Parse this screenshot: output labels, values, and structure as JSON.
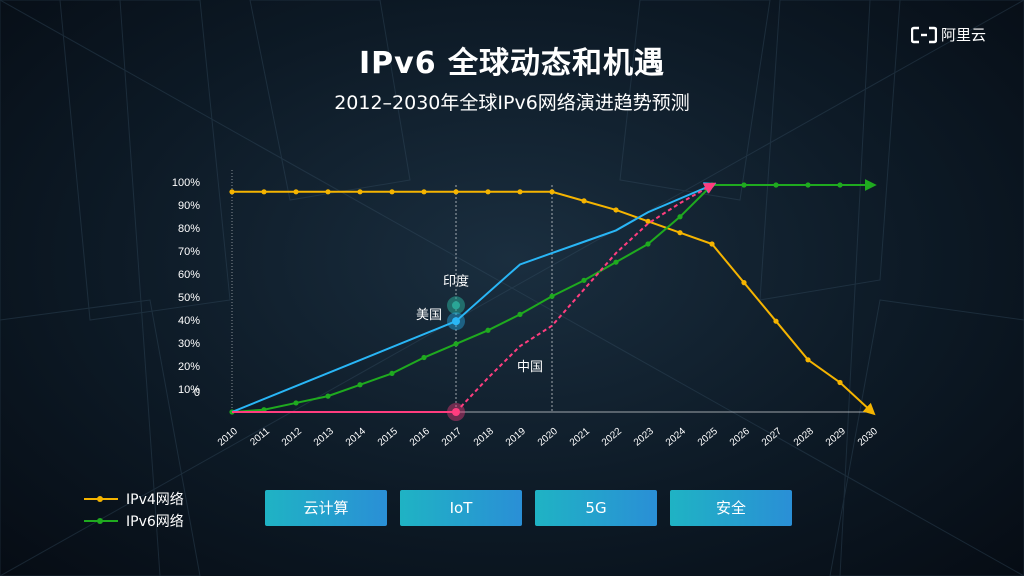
{
  "header": {
    "title": "IPv6 全球动态和机遇",
    "subtitle": "2012–2030年全球IPv6网络演进趋势预测",
    "logo_text": "阿里云"
  },
  "legend": [
    {
      "label": "IPv4网络",
      "color": "#f5b400"
    },
    {
      "label": "IPv6网络",
      "color": "#1faa1f"
    }
  ],
  "tags": [
    "云计算",
    "IoT",
    "5G",
    "安全"
  ],
  "chart_data": {
    "type": "line",
    "x": [
      "2010",
      "2011",
      "2012",
      "2013",
      "2014",
      "2015",
      "2016",
      "2017",
      "2018",
      "2019",
      "2020",
      "2021",
      "2022",
      "2023",
      "2024",
      "2025",
      "2026",
      "2027",
      "2028",
      "2029",
      "2030"
    ],
    "y_ticks": [
      "0",
      "10%",
      "20%",
      "30%",
      "40%",
      "50%",
      "60%",
      "70%",
      "80%",
      "90%",
      "100%"
    ],
    "ylim": [
      0,
      100
    ],
    "series": [
      {
        "name": "IPv4网络",
        "color": "#f5b400",
        "values": [
          97,
          97,
          97,
          97,
          97,
          97,
          97,
          97,
          97,
          97,
          97,
          93,
          89,
          84,
          79,
          74,
          57,
          40,
          23,
          13,
          0
        ]
      },
      {
        "name": "IPv6网络",
        "color": "#1faa1f",
        "values": [
          0,
          1,
          4,
          7,
          12,
          17,
          24,
          30,
          36,
          43,
          51,
          58,
          66,
          74,
          86,
          100,
          100,
          100,
          100,
          100,
          100
        ]
      },
      {
        "name": "美国",
        "color": "#29b6f6",
        "points": [
          [
            "2010",
            0
          ],
          [
            "2017",
            40
          ],
          [
            "2019",
            65
          ],
          [
            "2020",
            70
          ],
          [
            "2021",
            75
          ],
          [
            "2022",
            80
          ],
          [
            "2023",
            88
          ],
          [
            "2025",
            100
          ]
        ]
      },
      {
        "name": "中国",
        "color": "#ff3d7f",
        "points": [
          [
            "2010",
            0
          ],
          [
            "2017",
            0
          ],
          [
            "2018",
            15
          ],
          [
            "2019",
            29
          ],
          [
            "2020",
            38
          ],
          [
            "2021",
            54
          ],
          [
            "2022",
            70
          ],
          [
            "2023",
            83
          ],
          [
            "2024",
            92
          ],
          [
            "2025",
            100
          ]
        ]
      }
    ],
    "annotations": [
      {
        "text": "印度",
        "x": "2017",
        "y": 47
      },
      {
        "text": "美国",
        "x": "2017",
        "y": 40
      },
      {
        "text": "中国",
        "x": "2019",
        "y": 18
      }
    ],
    "vertical_markers": [
      "2017",
      "2020"
    ],
    "colors": {
      "india_marker": "#2aa596"
    }
  }
}
